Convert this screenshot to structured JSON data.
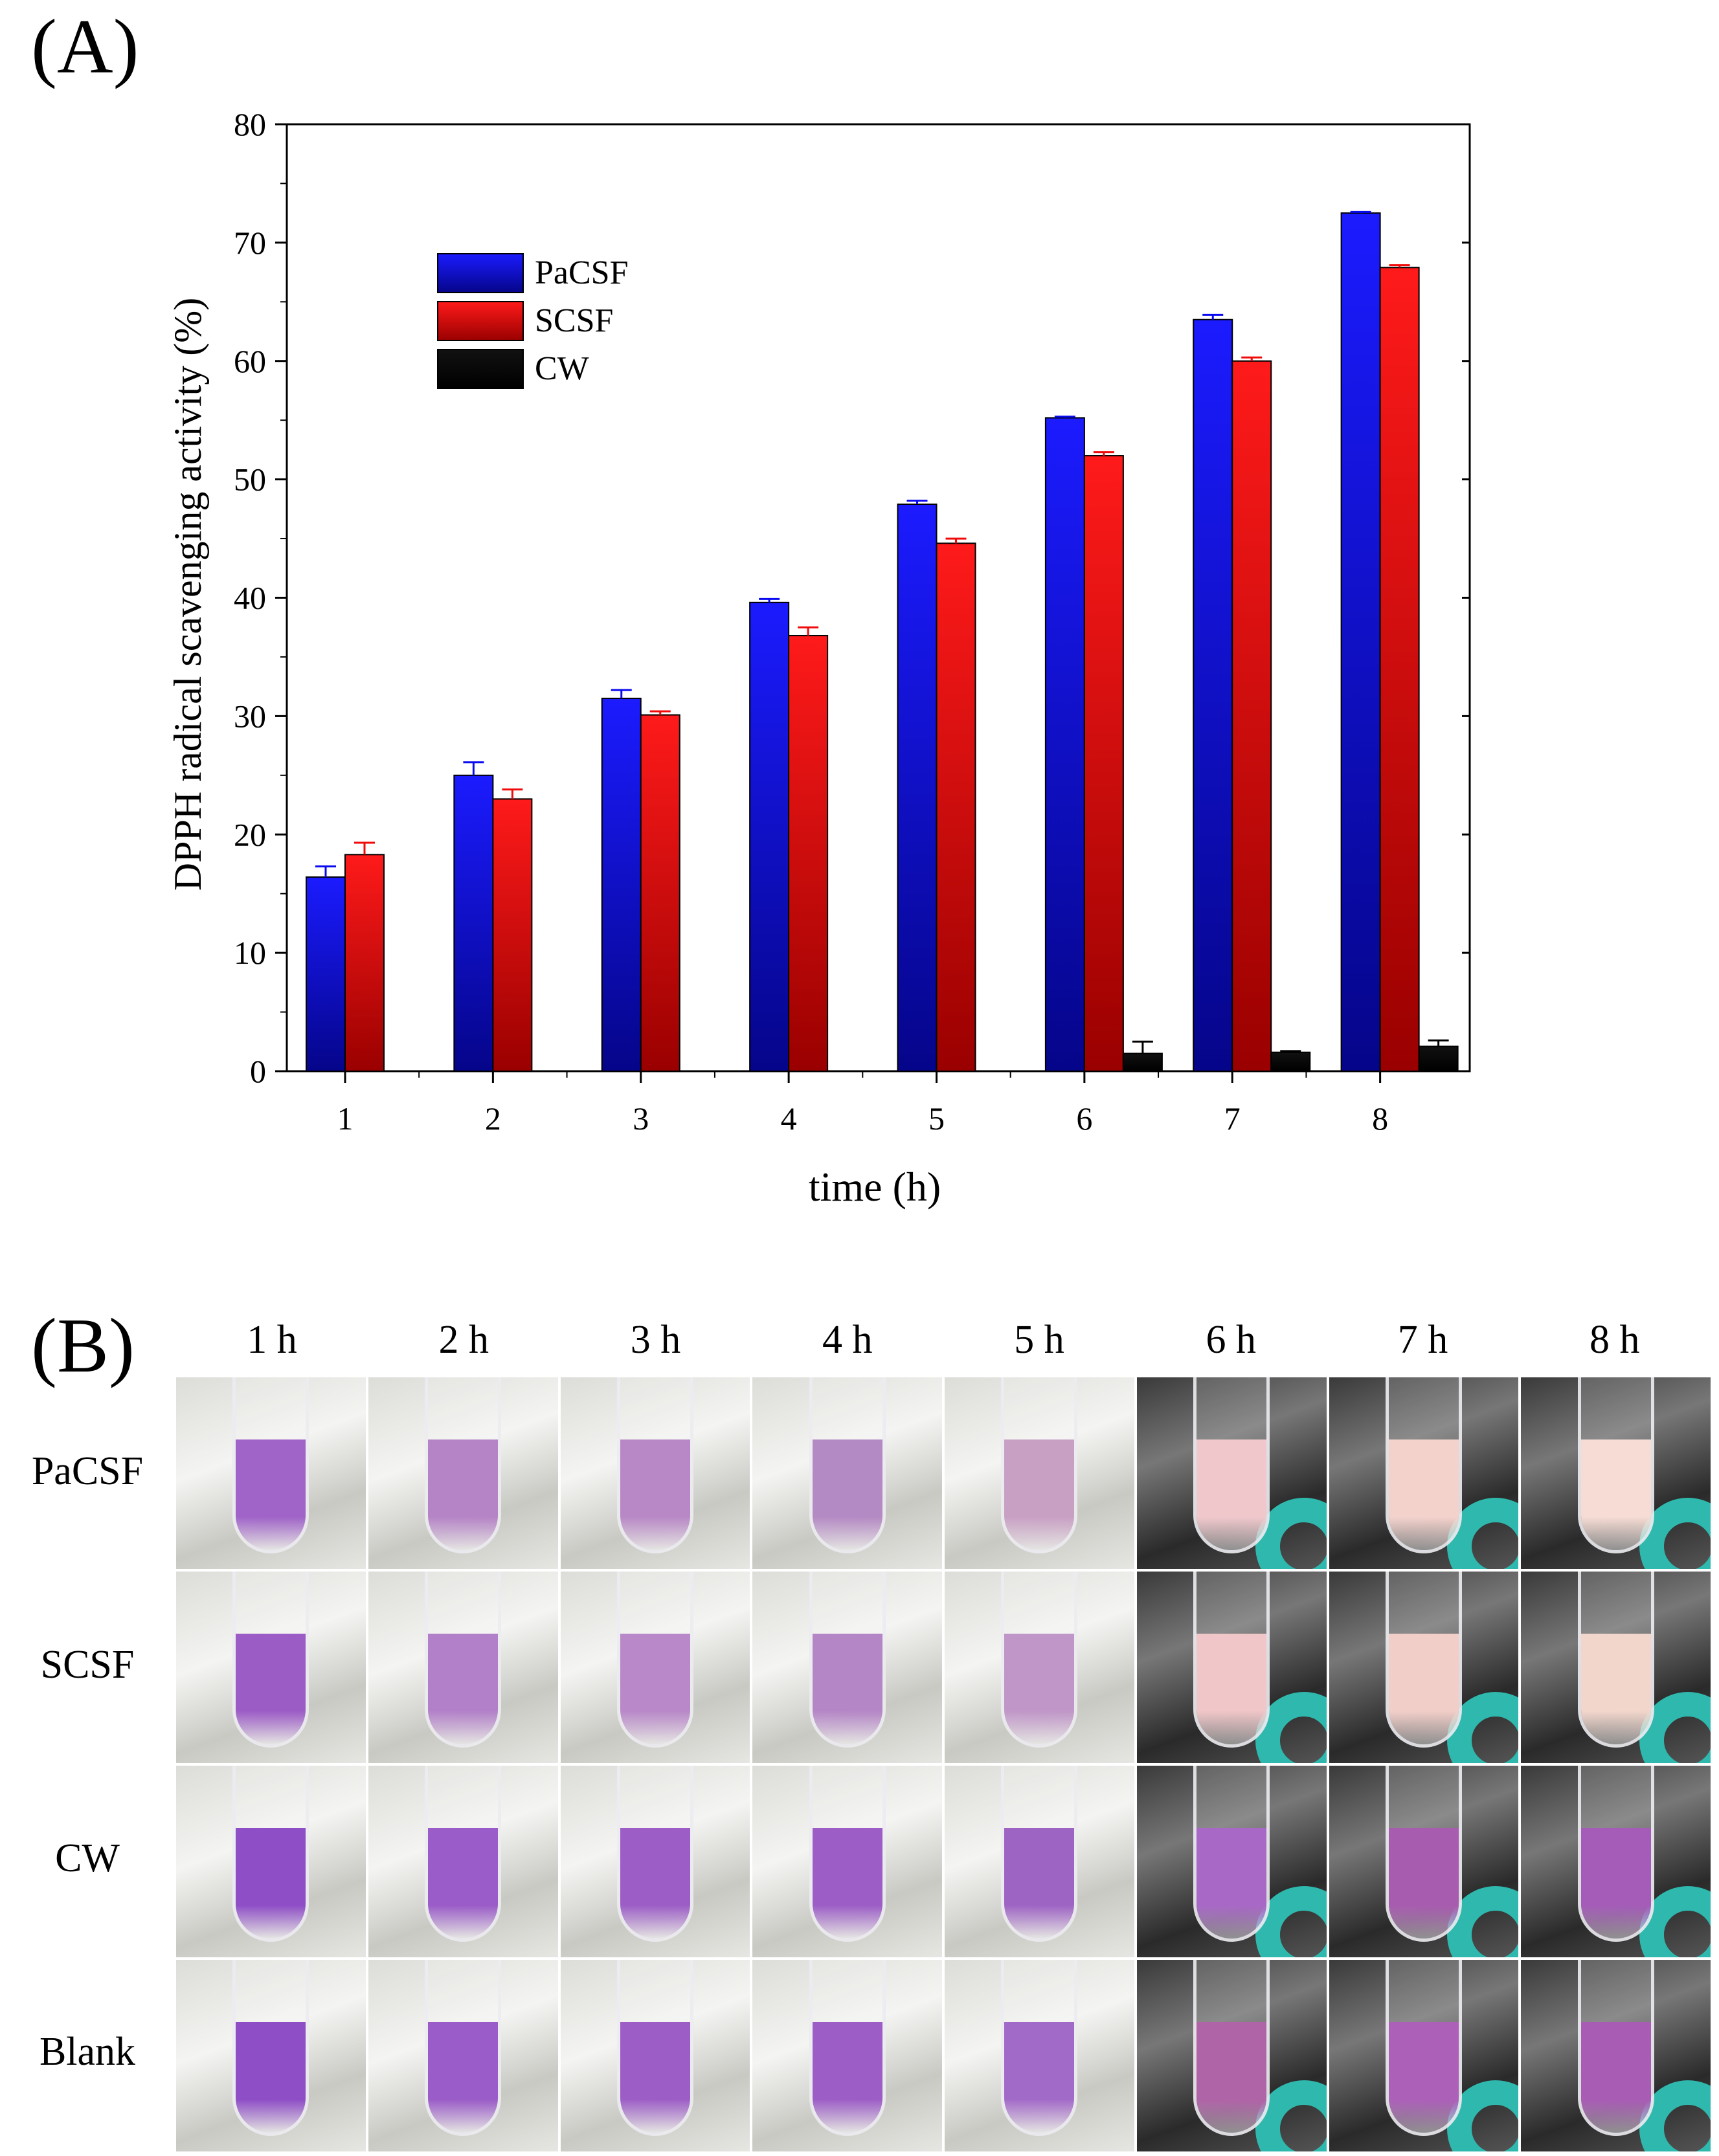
{
  "panel_a": {
    "label": "(A)"
  },
  "chart_data": {
    "type": "bar",
    "title": "",
    "xlabel": "time (h)",
    "ylabel": "DPPH radical scavenging activity (%)",
    "ylim": [
      0,
      80
    ],
    "yticks": [
      0,
      10,
      20,
      30,
      40,
      50,
      60,
      70,
      80
    ],
    "categories": [
      "1",
      "2",
      "3",
      "4",
      "5",
      "6",
      "7",
      "8"
    ],
    "legend_position": "top-left",
    "series": [
      {
        "name": "PaCSF",
        "color": "#0a0af0",
        "values": [
          16.4,
          25.0,
          31.5,
          39.6,
          47.9,
          55.2,
          63.5,
          72.5
        ],
        "errors": [
          0.9,
          1.1,
          0.7,
          0.3,
          0.3,
          0.1,
          0.4,
          0.1
        ]
      },
      {
        "name": "SCSF",
        "color": "#f00a0a",
        "values": [
          18.3,
          23.0,
          30.1,
          36.8,
          44.6,
          52.0,
          60.0,
          67.9
        ],
        "errors": [
          1.0,
          0.8,
          0.3,
          0.7,
          0.4,
          0.3,
          0.3,
          0.2
        ]
      },
      {
        "name": "CW",
        "color": "#050505",
        "values": [
          0,
          0,
          0,
          0,
          0,
          1.5,
          1.6,
          2.1
        ],
        "errors": [
          0,
          0,
          0,
          0,
          0,
          1.0,
          0.1,
          0.5
        ]
      }
    ]
  },
  "panel_b": {
    "label": "(B)",
    "columns": [
      "1 h",
      "2 h",
      "3 h",
      "4 h",
      "5 h",
      "6 h",
      "7 h",
      "8 h"
    ],
    "rows": [
      {
        "name": "PaCSF",
        "colors": [
          "#a064c8",
          "#b584c6",
          "#b888c6",
          "#b48ac4",
          "#c8a0c4",
          "#f0c8cc",
          "#f4d2cc",
          "#f6dcd4"
        ]
      },
      {
        "name": "SCSF",
        "colors": [
          "#9c5cc6",
          "#b280c8",
          "#b888c8",
          "#b486c6",
          "#c096c8",
          "#f0c6c8",
          "#f2cec8",
          "#f2d6cc"
        ]
      },
      {
        "name": "CW",
        "colors": [
          "#8e4ec6",
          "#9a5cc8",
          "#9c5ec6",
          "#9c5ec6",
          "#9e64c4",
          "#a868c6",
          "#a85cb0",
          "#a45cb8"
        ]
      },
      {
        "name": "Blank",
        "colors": [
          "#8e4ec6",
          "#9a5cc8",
          "#9c5ec6",
          "#9c5ec6",
          "#a26ac8",
          "#b064a8",
          "#ac60b8",
          "#a85cb4"
        ]
      }
    ]
  }
}
